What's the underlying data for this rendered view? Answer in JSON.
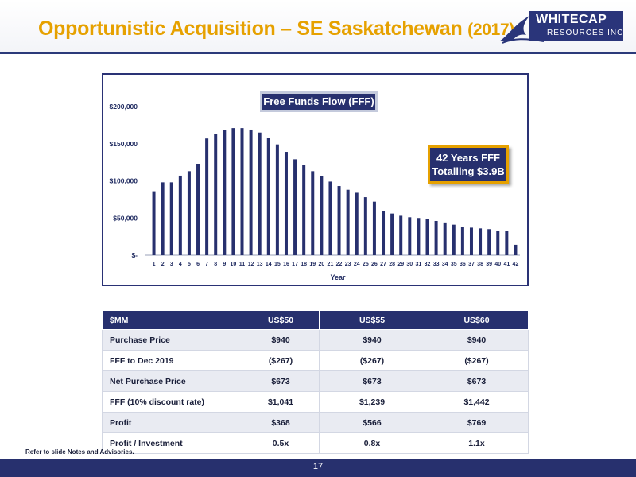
{
  "header": {
    "title": "Opportunistic Acquisition – SE Saskatchewan",
    "title_year": "(2017)",
    "logo_name": "WHITECAP",
    "logo_sub": "RESOURCES INC"
  },
  "chart_data": {
    "type": "bar",
    "title": "Free Funds Flow (FFF)",
    "xlabel": "Year",
    "ylabel": "",
    "ylim": [
      0,
      200000
    ],
    "y_ticks": [
      0,
      50000,
      100000,
      150000,
      200000
    ],
    "y_tick_labels": [
      "$-",
      "$50,000",
      "$100,000",
      "$150,000",
      "$200,000"
    ],
    "categories": [
      "1",
      "2",
      "3",
      "4",
      "5",
      "6",
      "7",
      "8",
      "9",
      "10",
      "11",
      "12",
      "13",
      "14",
      "15",
      "16",
      "17",
      "18",
      "19",
      "20",
      "21",
      "22",
      "23",
      "24",
      "25",
      "26",
      "27",
      "28",
      "29",
      "30",
      "31",
      "32",
      "33",
      "34",
      "35",
      "36",
      "37",
      "38",
      "39",
      "40",
      "41",
      "42"
    ],
    "values": [
      86000,
      98000,
      98000,
      107000,
      113000,
      123000,
      157000,
      163000,
      168000,
      171000,
      171000,
      169000,
      165000,
      158000,
      149000,
      139000,
      129000,
      121000,
      113000,
      106000,
      99000,
      93000,
      88000,
      84000,
      78000,
      72000,
      59000,
      56000,
      53000,
      51000,
      50000,
      49000,
      46000,
      44000,
      41000,
      38000,
      37000,
      36000,
      35000,
      33000,
      33000,
      14000
    ],
    "bar_color": "#27306e",
    "callout": [
      "42 Years FFF",
      "Totalling $3.9B"
    ]
  },
  "table": {
    "headers": [
      "$MM",
      "US$50",
      "US$55",
      "US$60"
    ],
    "rows": [
      [
        "Purchase Price",
        "$940",
        "$940",
        "$940"
      ],
      [
        "FFF to Dec 2019",
        "($267)",
        "($267)",
        "($267)"
      ],
      [
        "Net Purchase Price",
        "$673",
        "$673",
        "$673"
      ],
      [
        "FFF (10% discount rate)",
        "$1,041",
        "$1,239",
        "$1,442"
      ],
      [
        "Profit",
        "$368",
        "$566",
        "$769"
      ],
      [
        "Profit / Investment",
        "0.5x",
        "0.8x",
        "1.1x"
      ]
    ]
  },
  "footnote": "Refer to slide Notes and Advisories.",
  "page_number": "17",
  "colors": {
    "accent": "#e6a100",
    "navy": "#27306e"
  }
}
